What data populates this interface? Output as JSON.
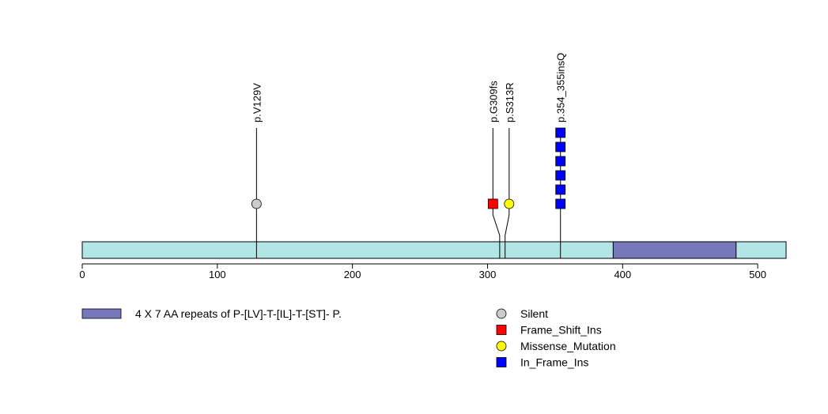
{
  "chart_data": {
    "type": "lollipop",
    "x_axis": {
      "ticks": [
        0,
        100,
        200,
        300,
        400,
        500
      ],
      "range": [
        0,
        521
      ]
    },
    "protein": {
      "length": 521,
      "backbone_color": "#b2e5e5",
      "domains": [
        {
          "start": 393,
          "end": 484,
          "label": "4 X 7 AA repeats of P-[LV]-T-[IL]-T-[ST]- P.",
          "color": "#7777bb"
        }
      ]
    },
    "mutations": [
      {
        "label": "p.V129V",
        "position": 129,
        "display_position": 129,
        "count": 1,
        "type": "Silent"
      },
      {
        "label": "p.G309fs",
        "position": 309,
        "display_position": 304,
        "count": 1,
        "type": "Frame_Shift_Ins"
      },
      {
        "label": "p.S313R",
        "position": 313,
        "display_position": 316,
        "count": 1,
        "type": "Missense_Mutation"
      },
      {
        "label": "p.354_355insQ",
        "position": 354,
        "display_position": 354,
        "count": 6,
        "type": "In_Frame_Ins"
      }
    ],
    "legend": [
      {
        "label": "Silent",
        "color": "#cccccc",
        "shape": "circle"
      },
      {
        "label": "Frame_Shift_Ins",
        "color": "#ff0000",
        "shape": "square"
      },
      {
        "label": "Missense_Mutation",
        "color": "#ffff00",
        "shape": "circle"
      },
      {
        "label": "In_Frame_Ins",
        "color": "#0000ff",
        "shape": "square"
      }
    ]
  }
}
